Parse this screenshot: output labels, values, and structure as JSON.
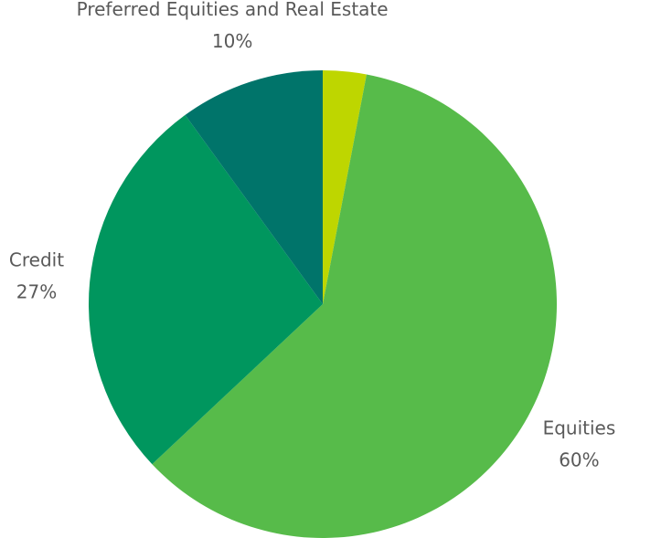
{
  "chart_data": {
    "type": "pie",
    "categories": [
      null,
      "Equities",
      "Credit",
      "Preferred Equities and Real Estate"
    ],
    "values": [
      3,
      60,
      27,
      10
    ],
    "value_labels": [
      null,
      "60%",
      "27%",
      "10%"
    ],
    "colors": [
      "#bed600",
      "#57bb4a",
      "#00965e",
      "#00746a"
    ]
  }
}
